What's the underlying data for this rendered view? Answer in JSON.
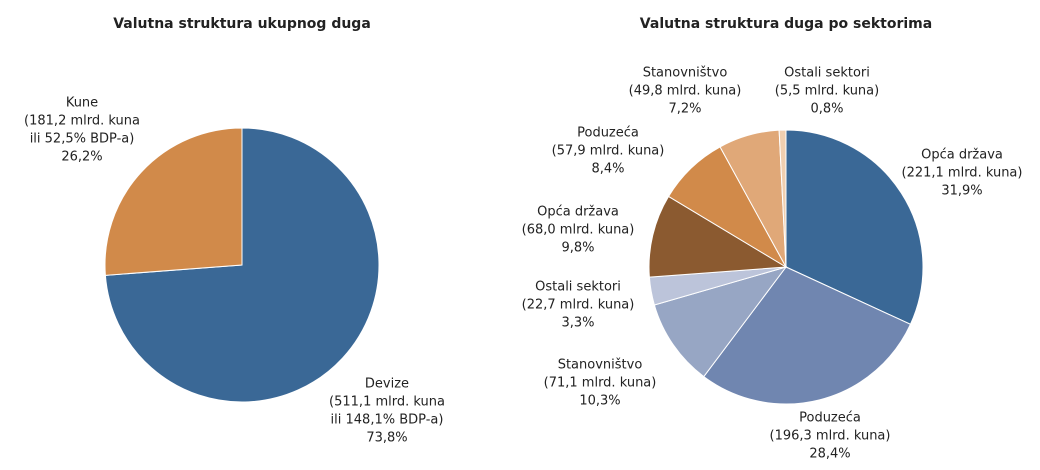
{
  "chart_data": [
    {
      "type": "pie",
      "title": "Valutna struktura ukupnog duga",
      "categories": [
        "Devize",
        "Kune"
      ],
      "notes": [
        [
          "(511,1 mlrd. kuna",
          "ili 148,1% BDP-a)"
        ],
        [
          "(181,2 mlrd. kuna",
          "ili 52,5% BDP-a)"
        ]
      ],
      "values": [
        73.8,
        26.2
      ],
      "value_labels": [
        "73,8%",
        "26,2%"
      ],
      "colors": [
        "#3a6896",
        "#d18a4a"
      ]
    },
    {
      "type": "pie",
      "title": "Valutna struktura duga po sektorima",
      "categories": [
        "Opća država",
        "Poduzeća",
        "Stanovništvo",
        "Ostali sektori",
        "Opća država",
        "Poduzeća",
        "Stanovništvo",
        "Ostali sektori"
      ],
      "notes": [
        [
          "(221,1 mlrd. kuna)"
        ],
        [
          "(196,3 mlrd. kuna)"
        ],
        [
          "(71,1 mlrd. kuna)"
        ],
        [
          "(22,7 mlrd. kuna)"
        ],
        [
          "(68,0 mlrd. kuna)"
        ],
        [
          "(57,9 mlrd. kuna)"
        ],
        [
          "(49,8 mlrd. kuna)"
        ],
        [
          "(5,5 mlrd. kuna)"
        ]
      ],
      "values": [
        31.9,
        28.4,
        10.3,
        3.3,
        9.8,
        8.4,
        7.2,
        0.8
      ],
      "value_labels": [
        "31,9%",
        "28,4%",
        "10,3%",
        "3,3%",
        "9,8%",
        "8,4%",
        "7,2%",
        "0,8%"
      ],
      "colors": [
        "#3a6896",
        "#7086b0",
        "#97a6c4",
        "#bcc4da",
        "#8b5a30",
        "#d18a4a",
        "#e0a878",
        "#f0cfb0"
      ]
    }
  ]
}
